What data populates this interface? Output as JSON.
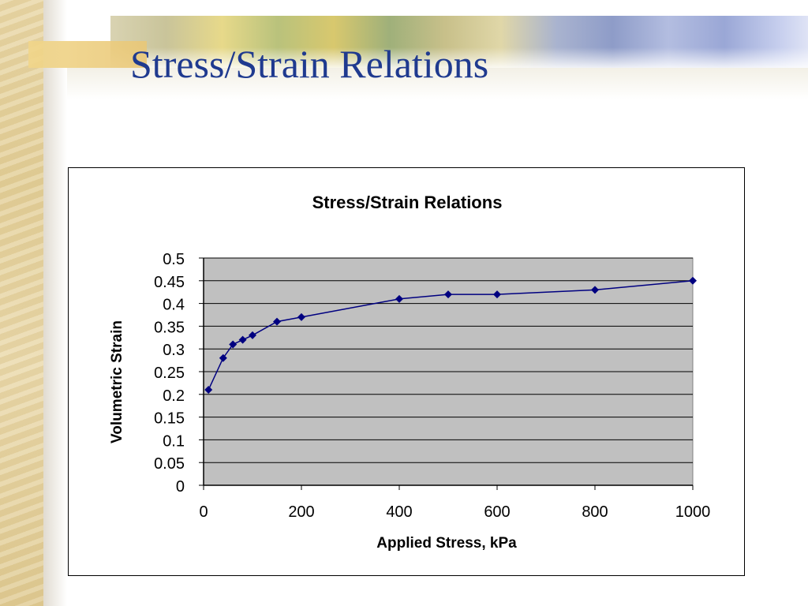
{
  "slide": {
    "title": "Stress/Strain Relations"
  },
  "chart_data": {
    "type": "scatter",
    "title": "Stress/Strain Relations",
    "xlabel": "Applied Stress, kPa",
    "ylabel": "Volumetric Strain",
    "xlim": [
      0,
      1000
    ],
    "ylim": [
      0,
      0.5
    ],
    "xticks": [
      "0",
      "200",
      "400",
      "600",
      "800",
      "1000"
    ],
    "yticks": [
      "0",
      "0.05",
      "0.1",
      "0.15",
      "0.2",
      "0.25",
      "0.3",
      "0.35",
      "0.4",
      "0.45",
      "0.5"
    ],
    "x": [
      10,
      40,
      60,
      80,
      100,
      150,
      200,
      400,
      500,
      600,
      800,
      1000
    ],
    "y": [
      0.21,
      0.28,
      0.31,
      0.32,
      0.33,
      0.36,
      0.37,
      0.41,
      0.42,
      0.42,
      0.43,
      0.45
    ],
    "grid": true,
    "legend": "none",
    "colors": {
      "series": "#000080",
      "plot_area": "#c0c0c0",
      "gridline": "#000000"
    }
  }
}
